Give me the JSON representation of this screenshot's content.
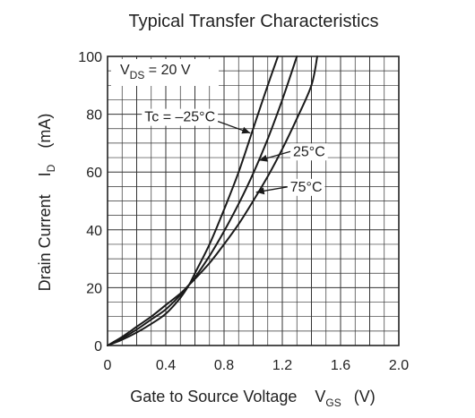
{
  "chart_data": {
    "type": "line",
    "title": "Typical Transfer Characteristics",
    "xlabel": {
      "main": "Gate to Source Voltage",
      "symbol": "V",
      "subscript": "GS",
      "unit": "(V)"
    },
    "ylabel": {
      "main": "Drain Current",
      "symbol": "I",
      "subscript": "D",
      "unit": "(mA)"
    },
    "xlim": [
      0,
      2.0
    ],
    "ylim": [
      0,
      100
    ],
    "xticks": [
      0,
      0.4,
      0.8,
      1.2,
      1.6,
      2.0
    ],
    "xtick_labels": [
      "0",
      "0.4",
      "0.8",
      "1.2",
      "1.6",
      "2.0"
    ],
    "yticks": [
      0,
      20,
      40,
      60,
      80,
      100
    ],
    "ytick_labels": [
      "0",
      "20",
      "40",
      "60",
      "80",
      "100"
    ],
    "grid": true,
    "condition": {
      "symbol": "V",
      "subscript": "DS",
      "text": " = 20 V"
    },
    "series": [
      {
        "name": "Tc = –25°C",
        "x": [
          0,
          0.1,
          0.2,
          0.3,
          0.4,
          0.5,
          0.56,
          0.6,
          0.7,
          0.8,
          0.9,
          1.0,
          1.1,
          1.17
        ],
        "y": [
          0,
          2,
          4.5,
          7.5,
          11,
          16.5,
          21,
          25,
          35,
          47,
          60,
          75,
          90,
          100
        ]
      },
      {
        "name": "25°C",
        "x": [
          0,
          0.1,
          0.2,
          0.3,
          0.4,
          0.5,
          0.56,
          0.6,
          0.7,
          0.8,
          0.9,
          1.0,
          1.1,
          1.2,
          1.3
        ],
        "y": [
          0,
          2.5,
          5.5,
          9,
          12.5,
          17.5,
          21,
          23.5,
          31,
          39.5,
          49,
          59.5,
          71.5,
          85,
          100
        ]
      },
      {
        "name": "75°C",
        "x": [
          0,
          0.1,
          0.2,
          0.3,
          0.4,
          0.5,
          0.56,
          0.6,
          0.7,
          0.8,
          0.9,
          1.0,
          1.1,
          1.2,
          1.3,
          1.4,
          1.44
        ],
        "y": [
          0,
          3,
          6.5,
          10,
          14,
          18,
          21,
          23,
          28.5,
          35,
          42,
          50,
          58.5,
          68,
          78.5,
          90,
          100
        ]
      }
    ],
    "annotations": [
      {
        "series": "Tc = –25°C",
        "text": "Tc = –25°C",
        "at_x": 0.98,
        "at_y": 73.5
      },
      {
        "series": "25°C",
        "text": "25°C",
        "at_x": 1.04,
        "at_y": 64
      },
      {
        "series": "75°C",
        "text": "75°C",
        "at_x": 1.02,
        "at_y": 53
      }
    ]
  }
}
